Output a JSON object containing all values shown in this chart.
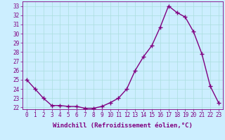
{
  "x": [
    0,
    1,
    2,
    3,
    4,
    5,
    6,
    7,
    8,
    9,
    10,
    11,
    12,
    13,
    14,
    15,
    16,
    17,
    18,
    19,
    20,
    21,
    22,
    23
  ],
  "y": [
    25.0,
    24.0,
    23.0,
    22.2,
    22.2,
    22.1,
    22.1,
    21.9,
    21.9,
    22.1,
    22.5,
    23.0,
    24.0,
    26.0,
    27.5,
    28.7,
    30.7,
    33.0,
    32.3,
    31.8,
    30.2,
    27.8,
    24.3,
    22.5
  ],
  "line_color": "#800080",
  "marker": "+",
  "marker_size": 4,
  "marker_lw": 1.0,
  "bg_color": "#cceeff",
  "grid_color": "#aadddd",
  "xlabel": "Windchill (Refroidissement éolien,°C)",
  "ylim": [
    21.8,
    33.5
  ],
  "xlim": [
    -0.5,
    23.5
  ],
  "yticks": [
    22,
    23,
    24,
    25,
    26,
    27,
    28,
    29,
    30,
    31,
    32,
    33
  ],
  "xticks": [
    0,
    1,
    2,
    3,
    4,
    5,
    6,
    7,
    8,
    9,
    10,
    11,
    12,
    13,
    14,
    15,
    16,
    17,
    18,
    19,
    20,
    21,
    22,
    23
  ],
  "xtick_labels": [
    "0",
    "1",
    "2",
    "3",
    "4",
    "5",
    "6",
    "7",
    "8",
    "9",
    "10",
    "11",
    "12",
    "13",
    "14",
    "15",
    "16",
    "17",
    "18",
    "19",
    "20",
    "21",
    "22",
    "23"
  ],
  "line_width": 1.0,
  "tick_color": "#800080",
  "xlabel_fontsize": 6.5,
  "tick_fontsize": 5.5
}
